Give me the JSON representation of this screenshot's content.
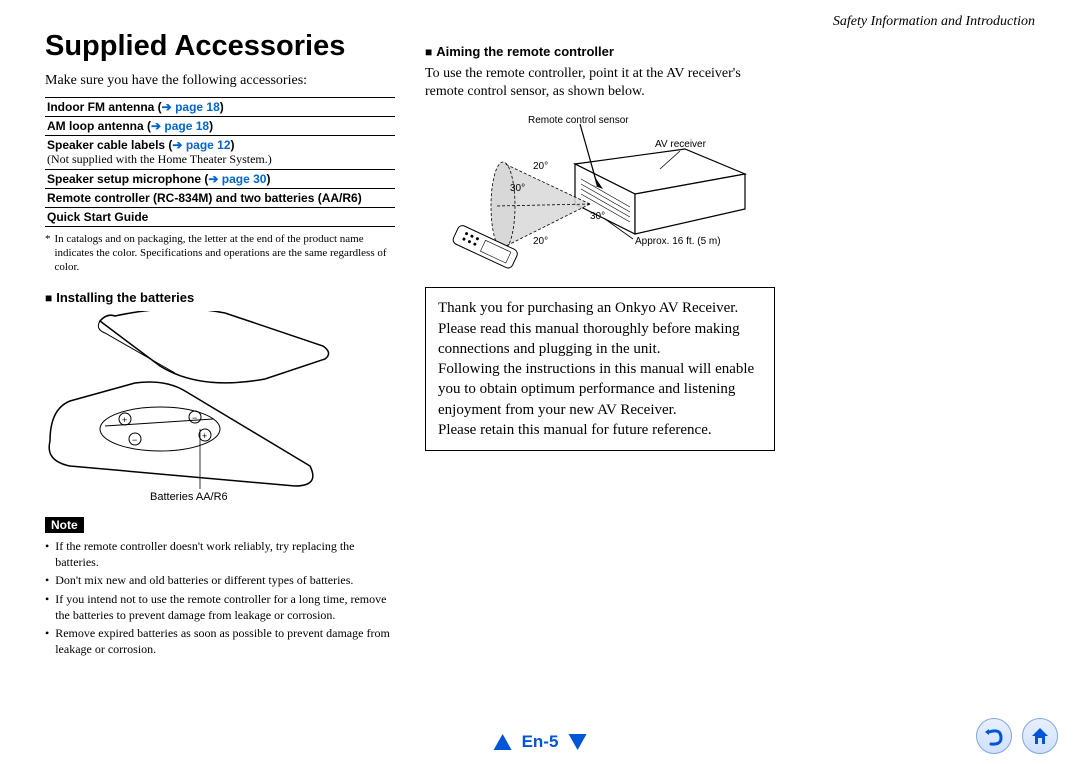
{
  "header": {
    "section": "Safety Information and Introduction"
  },
  "title": "Supplied Accessories",
  "intro": "Make sure you have the following accessories:",
  "accessories": [
    {
      "label": "Indoor FM antenna (",
      "arrow": "➔",
      "link": "page 18",
      "suffix": ")"
    },
    {
      "label": "AM loop antenna (",
      "arrow": "➔",
      "link": "page 18",
      "suffix": ")"
    },
    {
      "label": "Speaker cable labels (",
      "arrow": "➔",
      "link": "page 12",
      "suffix": ")",
      "sub": "(Not supplied with the Home Theater System.)"
    },
    {
      "label": "Speaker setup microphone (",
      "arrow": "➔",
      "link": "page 30",
      "suffix": ")"
    },
    {
      "label": "Remote controller (RC-834M) and two batteries (AA/R6)"
    },
    {
      "label": "Quick Start Guide"
    }
  ],
  "footnote": "In catalogs and on packaging, the letter at the end of the product name indicates the color. Specifications and operations are the same regardless of color.",
  "installing": {
    "title": "Installing the batteries",
    "caption": "Batteries AA/R6"
  },
  "note": {
    "badge": "Note",
    "items": [
      "If the remote controller doesn't work reliably, try replacing the batteries.",
      "Don't mix new and old batteries or different types of batteries.",
      "If you intend not to use the remote controller for a long time, remove the batteries to prevent damage from leakage or corrosion.",
      "Remove expired batteries as soon as possible to prevent damage from leakage or corrosion."
    ]
  },
  "aiming": {
    "title": "Aiming the remote controller",
    "text": "To use the remote controller, point it at the AV receiver's remote control sensor, as shown below.",
    "labels": {
      "sensor": "Remote control sensor",
      "receiver": "AV receiver",
      "angle20": "20°",
      "angle30": "30°",
      "distance": "Approx. 16 ft. (5 m)"
    }
  },
  "thanks": "Thank you for purchasing an Onkyo AV Receiver. Please read this manual thoroughly before making connections and plugging in the unit.\nFollowing the instructions in this manual will enable you to obtain optimum performance and listening enjoyment from your new AV Receiver.\nPlease retain this manual for future reference.",
  "pagenum": "En-5",
  "colors": {
    "link": "#0066cc",
    "nav": "#0054d6"
  }
}
